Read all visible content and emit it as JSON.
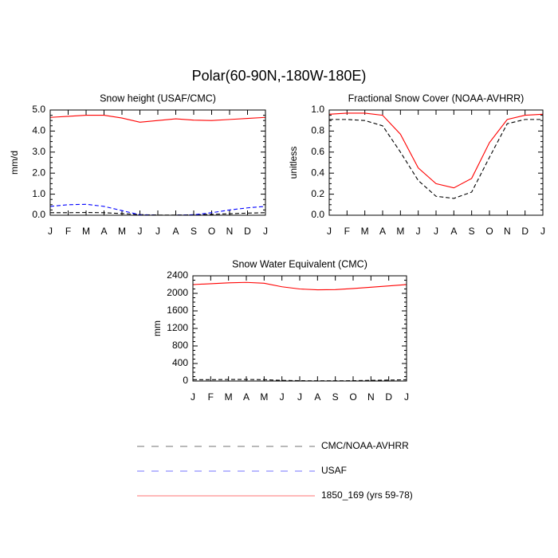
{
  "title": "Polar(60-90N,-180W-180E)",
  "chart_data": [
    {
      "type": "line",
      "title": "Snow height (USAF/CMC)",
      "y_label": "mm/d",
      "categories": [
        "J",
        "F",
        "M",
        "A",
        "M",
        "J",
        "J",
        "A",
        "S",
        "O",
        "N",
        "D",
        "J"
      ],
      "ylim": [
        0,
        5
      ],
      "yticks": [
        {
          "value": 0,
          "label": "0.0"
        },
        {
          "value": 1,
          "label": "1.0"
        },
        {
          "value": 2,
          "label": "2.0"
        },
        {
          "value": 3,
          "label": "3.0"
        },
        {
          "value": 4,
          "label": "4.0"
        },
        {
          "value": 5,
          "label": "5.0"
        }
      ],
      "series": [
        {
          "name": "CMC/NOAA-AVHRR",
          "color": "#000000",
          "dashed": true,
          "values": [
            0.12,
            0.12,
            0.13,
            0.12,
            0.08,
            0.03,
            0.01,
            0.01,
            0.02,
            0.04,
            0.07,
            0.1,
            0.12
          ]
        },
        {
          "name": "USAF",
          "color": "#0000ff",
          "dashed": true,
          "values": [
            0.42,
            0.5,
            0.52,
            0.42,
            0.22,
            0.02,
            0.0,
            0.0,
            0.02,
            0.12,
            0.25,
            0.35,
            0.42
          ]
        },
        {
          "name": "1850_169 (yrs 59-78)",
          "color": "#ff0000",
          "dashed": false,
          "values": [
            4.65,
            4.7,
            4.75,
            4.75,
            4.62,
            4.42,
            4.5,
            4.58,
            4.52,
            4.5,
            4.55,
            4.6,
            4.65
          ]
        }
      ]
    },
    {
      "type": "line",
      "title": "Fractional Snow Cover (NOAA-AVHRR)",
      "y_label": "unitless",
      "categories": [
        "J",
        "F",
        "M",
        "A",
        "M",
        "J",
        "J",
        "A",
        "S",
        "O",
        "N",
        "D",
        "J"
      ],
      "ylim": [
        0,
        1
      ],
      "yticks": [
        {
          "value": 0,
          "label": "0.0"
        },
        0.2,
        0.4,
        0.6,
        0.8,
        {
          "value": 1,
          "label": "1.0"
        }
      ],
      "series": [
        {
          "name": "CMC/NOAA-AVHRR",
          "color": "#000000",
          "dashed": true,
          "values": [
            0.91,
            0.91,
            0.9,
            0.85,
            0.6,
            0.33,
            0.18,
            0.16,
            0.22,
            0.55,
            0.87,
            0.91,
            0.91
          ]
        },
        {
          "name": "1850_169 (yrs 59-78)",
          "color": "#ff0000",
          "dashed": false,
          "values": [
            0.96,
            0.97,
            0.97,
            0.95,
            0.77,
            0.45,
            0.3,
            0.26,
            0.35,
            0.69,
            0.91,
            0.95,
            0.96
          ]
        }
      ]
    },
    {
      "type": "line",
      "title": "Snow Water Equivalent (CMC)",
      "y_label": "mm",
      "categories": [
        "J",
        "F",
        "M",
        "A",
        "M",
        "J",
        "J",
        "A",
        "S",
        "O",
        "N",
        "D",
        "J"
      ],
      "ylim": [
        0,
        2400
      ],
      "yticks": [
        0,
        400,
        800,
        1200,
        1600,
        2000,
        2400
      ],
      "series": [
        {
          "name": "CMC/NOAA-AVHRR",
          "color": "#000000",
          "dashed": true,
          "values": [
            30,
            30,
            35,
            35,
            30,
            15,
            8,
            5,
            5,
            8,
            15,
            22,
            30
          ]
        },
        {
          "name": "1850_169 (yrs 59-78)",
          "color": "#ff0000",
          "dashed": false,
          "values": [
            2200,
            2220,
            2240,
            2250,
            2230,
            2150,
            2100,
            2080,
            2085,
            2110,
            2140,
            2170,
            2200
          ]
        }
      ]
    }
  ]
}
